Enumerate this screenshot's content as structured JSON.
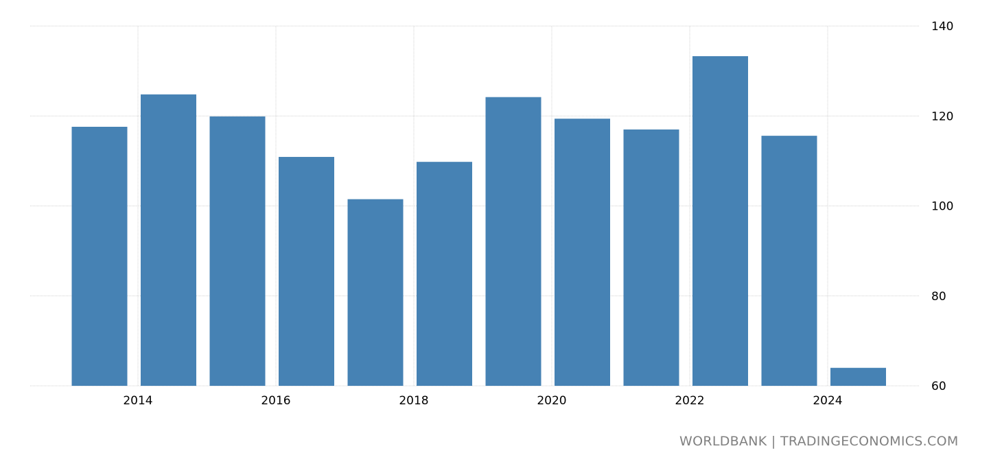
{
  "chart_data": {
    "type": "bar",
    "categories": [
      "2013",
      "2014",
      "2015",
      "2016",
      "2017",
      "2018",
      "2019",
      "2020",
      "2021",
      "2022",
      "2023",
      "2024"
    ],
    "values": [
      117.6,
      124.8,
      119.9,
      110.9,
      101.5,
      109.8,
      124.2,
      119.4,
      117.0,
      133.3,
      115.6,
      64.0
    ],
    "ylim": [
      60,
      140
    ],
    "yticks": [
      "60",
      "80",
      "100",
      "120",
      "140"
    ],
    "xticks": [
      "2014",
      "2016",
      "2018",
      "2020",
      "2022",
      "2024"
    ],
    "grid": true,
    "y_axis_position": "right",
    "bar_color": "#4682b4"
  },
  "source": "WORLDBANK | TRADINGECONOMICS.COM"
}
